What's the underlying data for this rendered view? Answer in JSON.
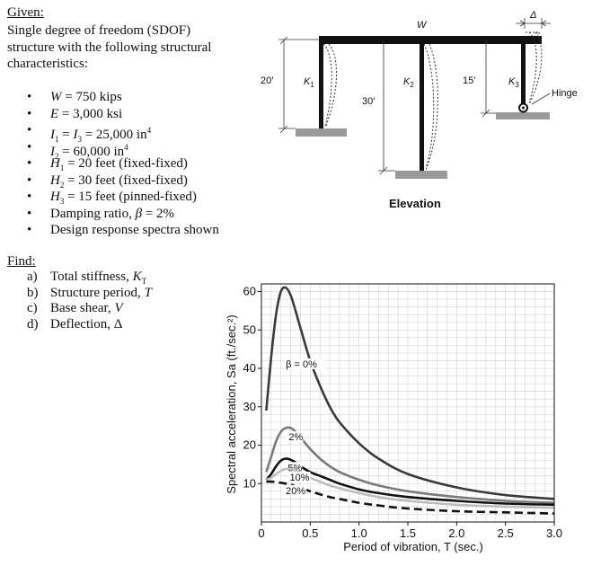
{
  "given": {
    "heading": "Given:",
    "intro": "Single degree of freedom (SDOF) structure with the following structural characteristics:",
    "items": [
      {
        "a": "W",
        "b": " = 750 kips",
        "c": "",
        "d": "",
        "e": "",
        "f": ""
      },
      {
        "a": "E",
        "b": " = 3,000 ksi",
        "c": "",
        "d": "",
        "e": "",
        "f": ""
      },
      {
        "a": "I",
        "b": "1",
        "c": " = ",
        "d": "I",
        "e": "3",
        "f": " = 25,000 in"
      },
      {
        "a": "I",
        "b": "2",
        "c": " = 60,000 in",
        "d": "",
        "e": "",
        "f": ""
      },
      {
        "a": "H",
        "b": "1",
        "c": " = 20 feet (fixed-fixed)",
        "d": "",
        "e": "",
        "f": ""
      },
      {
        "a": "H",
        "b": "2",
        "c": " = 30 feet (fixed-fixed)",
        "d": "",
        "e": "",
        "f": ""
      },
      {
        "a": "H",
        "b": "3",
        "c": " = 15 feet (pinned-fixed)",
        "d": "",
        "e": "",
        "f": ""
      },
      {
        "a": "Damping ratio, ",
        "b": "β",
        "c": " = 2%",
        "d": "",
        "e": "",
        "f": ""
      },
      {
        "a": "Design response spectra shown",
        "b": "",
        "c": "",
        "d": "",
        "e": "",
        "f": ""
      }
    ],
    "exponent": "4"
  },
  "find": {
    "heading": "Find:",
    "items": [
      {
        "letter": "a)",
        "text": "Total stiffness, ",
        "var": "K",
        "sub": "T"
      },
      {
        "letter": "b)",
        "text": "Structure period, ",
        "var": "T",
        "sub": ""
      },
      {
        "letter": "c)",
        "text": "Base shear, ",
        "var": "V",
        "sub": ""
      },
      {
        "letter": "d)",
        "text": "Deflection, Δ",
        "var": "",
        "sub": ""
      }
    ]
  },
  "elevation": {
    "title": "Elevation",
    "load_label": "W",
    "delta_label": "Δ",
    "hinge_label": "Hinge",
    "h1_label": "20′",
    "h2_label": "30′",
    "h3_label": "15′",
    "k1": "K",
    "k1_sub": "1",
    "k2": "K",
    "k2_sub": "2",
    "k3": "K",
    "k3_sub": "3"
  },
  "chart_data": {
    "type": "line",
    "title": "",
    "xlabel": "Period of vibration, T (sec.)",
    "ylabel": "Spectral acceleration, Sa (ft./sec.²)",
    "xlim": [
      0,
      3.0
    ],
    "ylim": [
      0,
      62
    ],
    "xticks": [
      0,
      0.5,
      1.0,
      1.5,
      2.0,
      2.5,
      3.0
    ],
    "xtick_labels": [
      "0",
      "0.5",
      "1.0",
      "1.5",
      "2.0",
      "2.5",
      "3.0"
    ],
    "yticks": [
      10,
      20,
      30,
      40,
      50,
      60
    ],
    "ytick_labels": [
      "10",
      "20",
      "30",
      "40",
      "50",
      "60"
    ],
    "grid": true,
    "legend": "inline labels",
    "series": [
      {
        "name": "β = 0%",
        "color": "#3a3a3a",
        "style": "solid",
        "x": [
          0.05,
          0.1,
          0.15,
          0.2,
          0.25,
          0.3,
          0.35,
          0.4,
          0.5,
          0.6,
          0.7,
          0.8,
          1.0,
          1.2,
          1.5,
          2.0,
          2.5,
          3.0
        ],
        "y": [
          29,
          43,
          54,
          60,
          61,
          59,
          55,
          50.5,
          42,
          35.5,
          30,
          26,
          20.5,
          16.5,
          12.5,
          9,
          7,
          6
        ]
      },
      {
        "name": "2%",
        "color": "#7a7a7a",
        "style": "solid",
        "x": [
          0.05,
          0.1,
          0.15,
          0.2,
          0.25,
          0.3,
          0.35,
          0.4,
          0.5,
          0.6,
          0.7,
          0.8,
          1.0,
          1.2,
          1.5,
          2.0,
          2.5,
          3.0
        ],
        "y": [
          13,
          17,
          21,
          23.5,
          24.5,
          24.5,
          23.5,
          22,
          19,
          16.5,
          14.5,
          13,
          11,
          9.5,
          8,
          6.5,
          5.5,
          5
        ]
      },
      {
        "name": "5%",
        "color": "#111111",
        "style": "solid",
        "x": [
          0.05,
          0.1,
          0.15,
          0.2,
          0.25,
          0.3,
          0.35,
          0.4,
          0.5,
          0.6,
          0.7,
          0.8,
          1.0,
          1.2,
          1.5,
          2.0,
          2.5,
          3.0
        ],
        "y": [
          11,
          12.5,
          14.5,
          16,
          16.5,
          16.2,
          15.5,
          14.5,
          13,
          12,
          11,
          10,
          8.5,
          7.5,
          6.5,
          5.5,
          4.8,
          4.5
        ]
      },
      {
        "name": "10%",
        "color": "#bdbdbd",
        "style": "solid",
        "x": [
          0.05,
          0.1,
          0.15,
          0.2,
          0.25,
          0.3,
          0.35,
          0.4,
          0.5,
          0.6,
          0.7,
          0.8,
          1.0,
          1.2,
          1.5,
          2.0,
          2.5,
          3.0
        ],
        "y": [
          11,
          11.5,
          12.5,
          13.3,
          13.8,
          13.8,
          13.3,
          12.8,
          11.5,
          10.5,
          9.5,
          8.8,
          7.5,
          6.5,
          5.5,
          4.5,
          4,
          3.7
        ]
      },
      {
        "name": "20%",
        "color": "#111111",
        "style": "dashed",
        "x": [
          0.05,
          0.1,
          0.15,
          0.2,
          0.25,
          0.3,
          0.35,
          0.4,
          0.5,
          0.6,
          0.7,
          0.8,
          1.0,
          1.2,
          1.5,
          2.0,
          2.5,
          3.0
        ],
        "y": [
          10.5,
          10.5,
          10.4,
          10.2,
          10,
          9.7,
          9.3,
          8.9,
          8,
          7.2,
          6.5,
          6,
          5,
          4.3,
          3.5,
          2.8,
          2.5,
          2.2
        ]
      }
    ]
  }
}
